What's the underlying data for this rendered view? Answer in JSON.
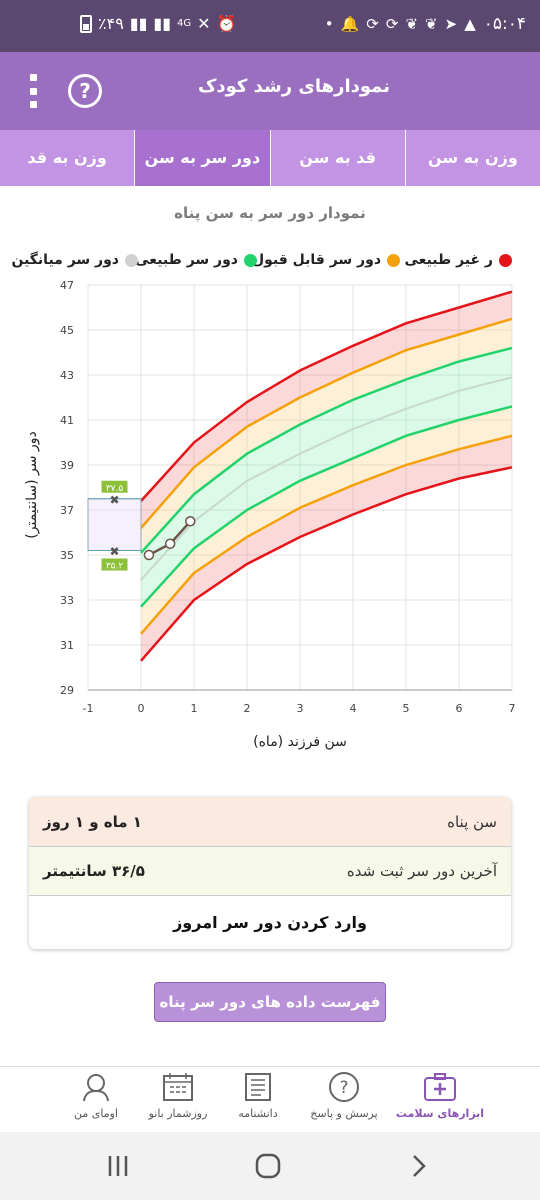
{
  "status_bar": {
    "time": "۰۵:۰۴",
    "battery": "٪۴۹",
    "network": "4G"
  },
  "app_bar": {
    "title": "نمودارهای رشد کودک",
    "help_symbol": "?"
  },
  "tabs": [
    {
      "label": "وزن به سن",
      "active": false
    },
    {
      "label": "قد به سن",
      "active": false
    },
    {
      "label": "دور سر به سن",
      "active": true
    },
    {
      "label": "وزن به قد",
      "active": false
    }
  ],
  "chart_title": "نمودار دور سر به سن  پناه",
  "legend": [
    {
      "label": "ر غیر طبیعی",
      "color": "#e5141a"
    },
    {
      "label": "دور سر قابل قبول",
      "color": "#f5a20a"
    },
    {
      "label": "دور سر طبیعی",
      "color": "#22d36b"
    },
    {
      "label": "دور سر میانگین",
      "color": "#d0d0d0"
    }
  ],
  "chart_data": {
    "type": "line",
    "xlabel": "سن فرزند (ماه)",
    "ylabel": "دور سر (سانتیمتر)",
    "xlim": [
      -1,
      7
    ],
    "ylim": [
      29,
      47
    ],
    "x_ticks": [
      -1,
      0,
      1,
      2,
      3,
      4,
      5,
      6,
      7
    ],
    "y_ticks": [
      29,
      31,
      33,
      35,
      37,
      39,
      41,
      43,
      45,
      47
    ],
    "x": [
      0,
      1,
      2,
      3,
      4,
      5,
      6,
      7
    ],
    "series": [
      {
        "name": "upper_abnormal",
        "color": "#e5141a",
        "values": [
          37.4,
          40.0,
          41.8,
          43.2,
          44.3,
          45.3,
          46.0,
          46.7
        ]
      },
      {
        "name": "upper_acceptable",
        "color": "#f5a20a",
        "values": [
          36.2,
          38.9,
          40.7,
          42.0,
          43.1,
          44.1,
          44.8,
          45.5
        ]
      },
      {
        "name": "upper_normal",
        "color": "#22d36b",
        "values": [
          35.1,
          37.7,
          39.5,
          40.8,
          41.9,
          42.8,
          43.6,
          44.2
        ]
      },
      {
        "name": "median",
        "color": "#c8d8cc",
        "values": [
          33.9,
          36.5,
          38.3,
          39.5,
          40.6,
          41.5,
          42.3,
          42.9
        ]
      },
      {
        "name": "lower_normal",
        "color": "#22d36b",
        "values": [
          32.7,
          35.3,
          37.0,
          38.3,
          39.3,
          40.3,
          41.0,
          41.6
        ]
      },
      {
        "name": "lower_acceptable",
        "color": "#f5a20a",
        "values": [
          31.5,
          34.2,
          35.8,
          37.1,
          38.1,
          39.0,
          39.7,
          40.3
        ]
      },
      {
        "name": "lower_abnormal",
        "color": "#e5141a",
        "values": [
          30.3,
          33.0,
          34.6,
          35.8,
          36.8,
          37.7,
          38.4,
          38.9
        ]
      }
    ],
    "child_points": [
      {
        "x": 0.15,
        "y": 35.0
      },
      {
        "x": 0.55,
        "y": 35.5
      },
      {
        "x": 0.93,
        "y": 36.5
      }
    ],
    "reference_box": {
      "x_from": -1,
      "x_to": 0,
      "y_from": 35.2,
      "y_to": 37.5
    },
    "reference_labels": {
      "upper": "۳۷.۵",
      "lower": "۳۵.۲"
    }
  },
  "info_card": {
    "age_label": "سن  پناه",
    "age_value": "۱ ماه و ۱ روز",
    "last_label": "آخرین دور سر ثبت شده",
    "last_value": "۳۶/۵ سانتیمتر",
    "enter_label": "وارد کردن دور سر امروز"
  },
  "list_button": "فهرست داده های دور سر  پناه",
  "bottom_nav": [
    {
      "label": "ابزارهای سلامت",
      "icon": "medical-kit-icon",
      "active": true
    },
    {
      "label": "پرسش و پاسخ",
      "icon": "question-icon",
      "active": false
    },
    {
      "label": "دانشنامه",
      "icon": "encyclopedia-icon",
      "active": false
    },
    {
      "label": "روزشمار بانو",
      "icon": "calendar-icon",
      "active": false
    },
    {
      "label": "اومای من",
      "icon": "profile-icon",
      "active": false
    }
  ]
}
